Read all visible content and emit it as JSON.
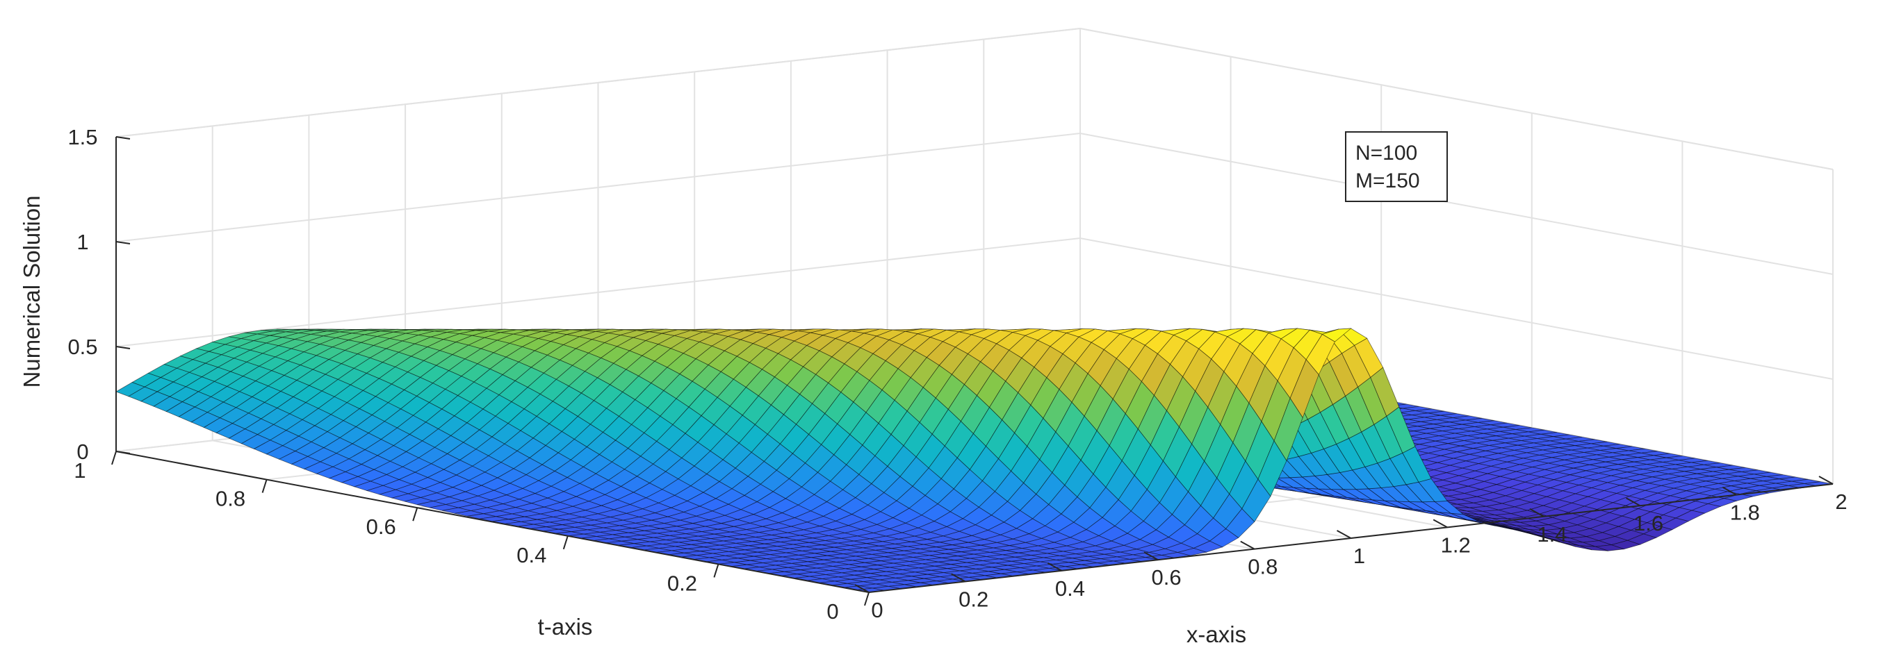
{
  "chart_data": {
    "type": "surface",
    "zlabel": "Numerical Solution",
    "xlabel": "x-axis",
    "ylabel": "t-axis",
    "xlim": [
      0,
      2
    ],
    "tlim": [
      0,
      1
    ],
    "zlim": [
      0,
      1.5
    ],
    "x_ticks": [
      "0",
      "0.2",
      "0.4",
      "0.6",
      "0.8",
      "1",
      "1.2",
      "1.4",
      "1.6",
      "1.8",
      "2"
    ],
    "t_ticks": [
      "0",
      "0.2",
      "0.4",
      "0.6",
      "0.8",
      "1"
    ],
    "z_ticks": [
      "0",
      "0.5",
      "1",
      "1.5"
    ],
    "legend": [
      "N=100",
      "M=150"
    ],
    "grid": true,
    "colormap": [
      "#3e26a8",
      "#4743e0",
      "#2e6ffc",
      "#1b97e7",
      "#10b7c7",
      "#2bc79d",
      "#7fc84b",
      "#d2b832",
      "#fbdc26",
      "#f9fb15"
    ],
    "edge_color": "#000000",
    "peak": {
      "x": 1.0,
      "t": 0.0,
      "z": 1.0
    },
    "wave_crest": {
      "start_x": 1.0,
      "start_t": 0.0,
      "end_x": 0.3,
      "end_t": 1.0,
      "height_at_t1": 0.5
    },
    "trough": {
      "x": 1.55,
      "t": 0.0,
      "z": -0.2
    }
  }
}
